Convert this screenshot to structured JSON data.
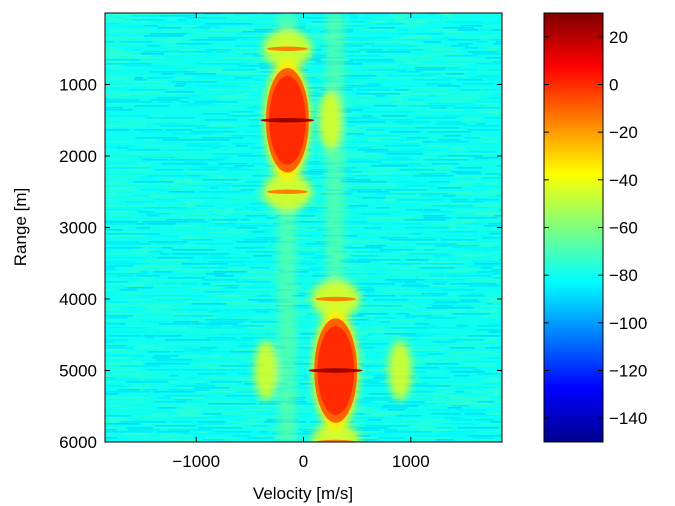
{
  "chart_data": {
    "type": "heatmap",
    "title": "",
    "xlabel": "Velocity [m/s]",
    "ylabel": "Range [m]",
    "xlim": [
      -1850,
      1850
    ],
    "ylim": [
      0,
      6000
    ],
    "y_reversed": true,
    "xticks": [
      -1000,
      0,
      1000
    ],
    "xtick_labels": [
      "−1000",
      "0",
      "1000"
    ],
    "yticks": [
      1000,
      2000,
      3000,
      4000,
      5000,
      6000
    ],
    "ytick_labels": [
      "1000",
      "2000",
      "3000",
      "4000",
      "5000",
      "6000"
    ],
    "colorbar": {
      "colormap": "jet",
      "range": [
        -150,
        30
      ],
      "ticks": [
        20,
        0,
        -20,
        -40,
        -60,
        -80,
        -100,
        -120,
        -140
      ],
      "tick_labels": [
        "20",
        "0",
        "−20",
        "−40",
        "−60",
        "−80",
        "−100",
        "−120",
        "−140"
      ]
    },
    "background_level_db": -80,
    "targets": [
      {
        "velocity": -150,
        "range": 1500,
        "peak_db": 25,
        "main_lobe_db": 0
      },
      {
        "velocity": 300,
        "range": 5000,
        "peak_db": 25,
        "main_lobe_db": 0
      }
    ],
    "sidelobes": [
      {
        "velocity": -150,
        "range": 500,
        "level_db": 0
      },
      {
        "velocity": -150,
        "range": 2500,
        "level_db": 0
      },
      {
        "velocity": 300,
        "range": 4000,
        "level_db": 0
      },
      {
        "velocity": 300,
        "range": 6000,
        "level_db": 0
      },
      {
        "velocity": 250,
        "range": 1500,
        "level_db": -45
      },
      {
        "velocity": -350,
        "range": 5000,
        "level_db": -45
      },
      {
        "velocity": 900,
        "range": 5000,
        "level_db": -45
      }
    ],
    "grid": false,
    "legend": "none"
  }
}
